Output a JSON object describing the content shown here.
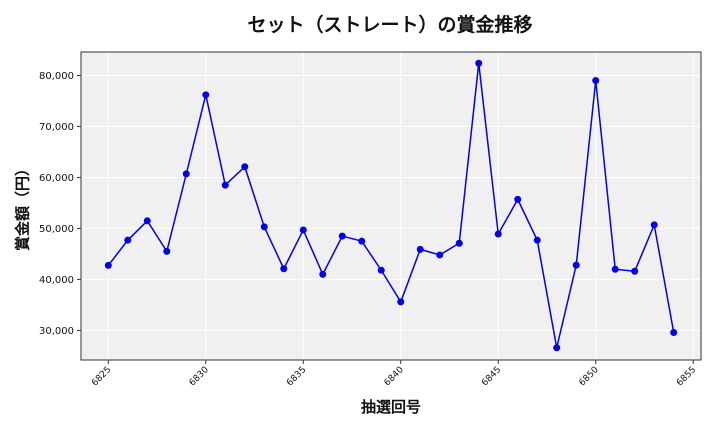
{
  "chart_data": {
    "type": "line",
    "title": "セット（ストレート）の賞金推移",
    "xlabel": "抽選回号",
    "ylabel": "賞金額（円）",
    "x": [
      6825,
      6826,
      6827,
      6828,
      6829,
      6830,
      6831,
      6832,
      6833,
      6834,
      6835,
      6836,
      6837,
      6838,
      6839,
      6840,
      6841,
      6842,
      6843,
      6844,
      6845,
      6846,
      6847,
      6848,
      6849,
      6850,
      6851,
      6852,
      6853,
      6854
    ],
    "series": [
      {
        "values": [
          42750,
          47700,
          51500,
          45500,
          60700,
          76200,
          58500,
          62100,
          50300,
          42100,
          49700,
          41000,
          48500,
          47500,
          41800,
          35600,
          45900,
          44800,
          47100,
          82400,
          48900,
          55700,
          47700,
          26600,
          42800,
          79000,
          42000,
          41600,
          50700,
          29600
        ],
        "color": "#0000ee"
      }
    ],
    "xticks": [
      6825,
      6830,
      6835,
      6840,
      6845,
      6850,
      6855
    ],
    "yticks": [
      30000,
      40000,
      50000,
      60000,
      70000,
      80000
    ],
    "ytick_labels": [
      "30,000",
      "40,000",
      "50,000",
      "60,000",
      "70,000",
      "80,000"
    ],
    "xlim": [
      6823.6,
      6855.4
    ],
    "ylim": [
      24200,
      84600
    ],
    "grid": true,
    "background": "#f0f0f0"
  }
}
